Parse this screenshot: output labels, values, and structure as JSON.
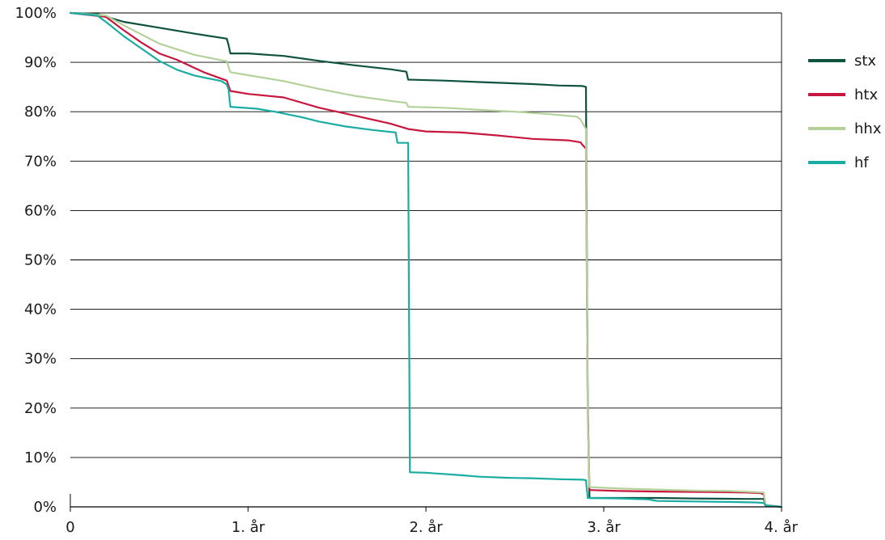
{
  "chart_data": {
    "type": "line",
    "title": "",
    "xlabel": "",
    "ylabel": "",
    "xlim": [
      0,
      4
    ],
    "ylim": [
      0,
      100
    ],
    "x_ticks": [
      {
        "value": 0,
        "label": "0"
      },
      {
        "value": 1,
        "label": "1. år"
      },
      {
        "value": 2,
        "label": "2. år"
      },
      {
        "value": 3,
        "label": "3. år"
      },
      {
        "value": 4,
        "label": "4. år"
      }
    ],
    "y_ticks": [
      {
        "value": 0,
        "label": "0%"
      },
      {
        "value": 10,
        "label": "10%"
      },
      {
        "value": 20,
        "label": "20%"
      },
      {
        "value": 30,
        "label": "30%"
      },
      {
        "value": 40,
        "label": "40%"
      },
      {
        "value": 50,
        "label": "50%"
      },
      {
        "value": 60,
        "label": "60%"
      },
      {
        "value": 70,
        "label": "70%"
      },
      {
        "value": 80,
        "label": "80%"
      },
      {
        "value": 90,
        "label": "90%"
      },
      {
        "value": 100,
        "label": "100%"
      }
    ],
    "grid": {
      "horizontal": true,
      "vertical": false
    },
    "legend_position": "right",
    "series": [
      {
        "name": "stx",
        "color": "#0f5240",
        "points": [
          [
            0,
            100
          ],
          [
            0.15,
            99.8
          ],
          [
            0.3,
            98.2
          ],
          [
            0.5,
            97
          ],
          [
            0.7,
            95.8
          ],
          [
            0.88,
            94.8
          ],
          [
            0.89,
            93.5
          ],
          [
            0.9,
            91.8
          ],
          [
            1.0,
            91.8
          ],
          [
            1.2,
            91.3
          ],
          [
            1.4,
            90.3
          ],
          [
            1.6,
            89.4
          ],
          [
            1.8,
            88.6
          ],
          [
            1.89,
            88.1
          ],
          [
            1.9,
            86.5
          ],
          [
            2.1,
            86.3
          ],
          [
            2.3,
            86.0
          ],
          [
            2.6,
            85.6
          ],
          [
            2.75,
            85.3
          ],
          [
            2.88,
            85.2
          ],
          [
            2.9,
            85.0
          ],
          [
            2.91,
            20
          ],
          [
            2.92,
            1.8
          ],
          [
            3.1,
            1.8
          ],
          [
            3.3,
            1.8
          ],
          [
            3.5,
            1.7
          ],
          [
            3.8,
            1.6
          ],
          [
            3.9,
            1.6
          ],
          [
            3.91,
            0.3
          ],
          [
            4.0,
            0
          ]
        ]
      },
      {
        "name": "htx",
        "color": "#c8173e",
        "points": [
          [
            0,
            100
          ],
          [
            0.2,
            99.2
          ],
          [
            0.3,
            96.5
          ],
          [
            0.4,
            94.0
          ],
          [
            0.5,
            91.8
          ],
          [
            0.6,
            90.5
          ],
          [
            0.75,
            88.0
          ],
          [
            0.88,
            86.3
          ],
          [
            0.9,
            84.2
          ],
          [
            1.0,
            83.6
          ],
          [
            1.2,
            82.9
          ],
          [
            1.4,
            80.8
          ],
          [
            1.6,
            79.2
          ],
          [
            1.8,
            77.6
          ],
          [
            1.9,
            76.5
          ],
          [
            2.0,
            76.0
          ],
          [
            2.2,
            75.8
          ],
          [
            2.4,
            75.2
          ],
          [
            2.6,
            74.5
          ],
          [
            2.8,
            74.2
          ],
          [
            2.87,
            73.8
          ],
          [
            2.88,
            73.3
          ],
          [
            2.9,
            72.5
          ],
          [
            2.91,
            20
          ],
          [
            2.92,
            3.4
          ],
          [
            3.1,
            3.2
          ],
          [
            3.3,
            3.1
          ],
          [
            3.6,
            3.0
          ],
          [
            3.8,
            2.9
          ],
          [
            3.88,
            2.8
          ],
          [
            3.9,
            2.5
          ],
          [
            3.91,
            0.4
          ],
          [
            4.0,
            0
          ]
        ]
      },
      {
        "name": "hhx",
        "color": "#b5d19a",
        "points": [
          [
            0,
            100
          ],
          [
            0.2,
            99.5
          ],
          [
            0.3,
            97.5
          ],
          [
            0.5,
            93.8
          ],
          [
            0.7,
            91.5
          ],
          [
            0.88,
            90.2
          ],
          [
            0.9,
            88.0
          ],
          [
            1.0,
            87.4
          ],
          [
            1.2,
            86.2
          ],
          [
            1.4,
            84.6
          ],
          [
            1.6,
            83.2
          ],
          [
            1.8,
            82.2
          ],
          [
            1.89,
            81.8
          ],
          [
            1.9,
            81.0
          ],
          [
            2.1,
            80.8
          ],
          [
            2.3,
            80.4
          ],
          [
            2.5,
            80.0
          ],
          [
            2.7,
            79.5
          ],
          [
            2.85,
            79.0
          ],
          [
            2.87,
            78.4
          ],
          [
            2.9,
            76.5
          ],
          [
            2.91,
            18
          ],
          [
            2.92,
            4.0
          ],
          [
            3.1,
            3.7
          ],
          [
            3.3,
            3.5
          ],
          [
            3.5,
            3.3
          ],
          [
            3.7,
            3.2
          ],
          [
            3.85,
            3.0
          ],
          [
            3.9,
            2.9
          ],
          [
            3.91,
            0.4
          ],
          [
            4.0,
            0
          ]
        ]
      },
      {
        "name": "hf",
        "color": "#1aada3",
        "points": [
          [
            0,
            100
          ],
          [
            0.15,
            99.5
          ],
          [
            0.2,
            98.2
          ],
          [
            0.3,
            95.3
          ],
          [
            0.4,
            92.8
          ],
          [
            0.5,
            90.3
          ],
          [
            0.6,
            88.5
          ],
          [
            0.7,
            87.3
          ],
          [
            0.85,
            86.2
          ],
          [
            0.88,
            85.5
          ],
          [
            0.89,
            84.5
          ],
          [
            0.9,
            81.0
          ],
          [
            1.05,
            80.6
          ],
          [
            1.15,
            80.0
          ],
          [
            1.3,
            78.9
          ],
          [
            1.4,
            78.0
          ],
          [
            1.55,
            77.0
          ],
          [
            1.7,
            76.3
          ],
          [
            1.83,
            75.8
          ],
          [
            1.84,
            73.7
          ],
          [
            1.9,
            73.7
          ],
          [
            1.91,
            7.0
          ],
          [
            2.0,
            6.9
          ],
          [
            2.2,
            6.4
          ],
          [
            2.3,
            6.1
          ],
          [
            2.45,
            5.9
          ],
          [
            2.6,
            5.8
          ],
          [
            2.75,
            5.6
          ],
          [
            2.88,
            5.5
          ],
          [
            2.9,
            5.4
          ],
          [
            2.91,
            1.8
          ],
          [
            3.1,
            1.7
          ],
          [
            3.25,
            1.5
          ],
          [
            3.3,
            1.2
          ],
          [
            3.5,
            1.1
          ],
          [
            3.7,
            1.0
          ],
          [
            3.85,
            0.9
          ],
          [
            3.9,
            0.8
          ],
          [
            3.91,
            0.3
          ],
          [
            4.0,
            0
          ]
        ]
      }
    ]
  }
}
